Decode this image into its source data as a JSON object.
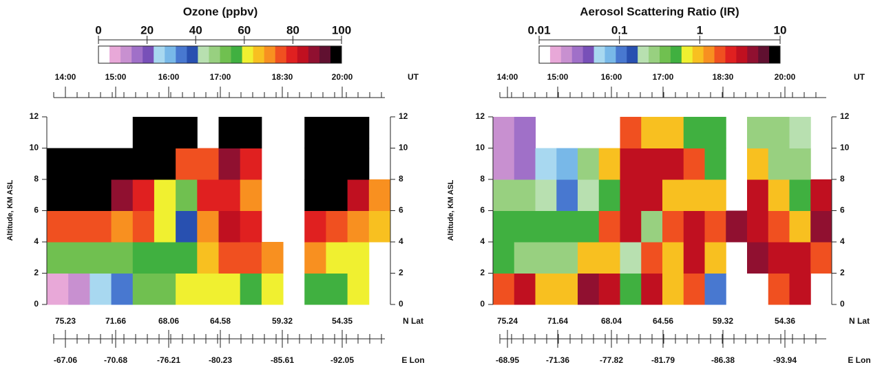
{
  "chart_data": [
    {
      "type": "heatmap",
      "title": "Ozone (ppbv)",
      "ylabel": "Altitude, KM ASL",
      "ylim": [
        0,
        12
      ],
      "yticks": [
        0,
        2,
        4,
        6,
        8,
        10,
        12
      ],
      "y": [
        0,
        2,
        4,
        6,
        8,
        10,
        12
      ],
      "z": [
        [
          5,
          10,
          25,
          35,
          50,
          50,
          60,
          60,
          60,
          55,
          60,
          null,
          55,
          55,
          60,
          null
        ],
        [
          50,
          50,
          50,
          50,
          55,
          55,
          55,
          65,
          75,
          75,
          70,
          null,
          70,
          60,
          60,
          null
        ],
        [
          75,
          75,
          75,
          70,
          75,
          60,
          40,
          70,
          85,
          80,
          null,
          null,
          80,
          75,
          70,
          65
        ],
        [
          100,
          100,
          100,
          90,
          80,
          60,
          50,
          80,
          80,
          70,
          null,
          null,
          100,
          100,
          85,
          70
        ],
        [
          100,
          100,
          100,
          100,
          100,
          100,
          75,
          75,
          90,
          80,
          null,
          null,
          100,
          100,
          100,
          null
        ],
        [
          null,
          null,
          null,
          null,
          100,
          100,
          100,
          null,
          100,
          100,
          null,
          null,
          100,
          100,
          100,
          null
        ]
      ],
      "colormap": [
        "#ffffff",
        "#e8a8d8",
        "#c890d0",
        "#a070c8",
        "#7850b8",
        "#a8d8f0",
        "#78b8e8",
        "#4878d0",
        "#2850b0",
        "#b8e0b0",
        "#98d080",
        "#70c050",
        "#40b040",
        "#f0f030",
        "#f8c020",
        "#f89020",
        "#f05020",
        "#e02020",
        "#c01020",
        "#901030",
        "#601030",
        "#000000"
      ],
      "clim": [
        0,
        100
      ],
      "cticks": [
        0,
        20,
        40,
        60,
        80,
        100
      ],
      "clog": false,
      "top_labels": [
        "14:00",
        "15:00",
        "16:00",
        "17:00",
        "18:30",
        "20:00"
      ],
      "top_unit": "UT",
      "lat_labels": [
        75.23,
        71.66,
        68.06,
        64.58,
        59.32,
        54.35
      ],
      "lat_unit": "N Lat",
      "lon_labels": [
        -67.06,
        -70.68,
        -76.21,
        -80.23,
        -85.61,
        -92.05
      ],
      "lon_unit": "E Lon"
    },
    {
      "type": "heatmap",
      "title": "Aerosol Scattering Ratio (IR)",
      "ylabel": "Altitude, KM ASL",
      "ylim": [
        0,
        12
      ],
      "yticks": [
        0,
        2,
        4,
        6,
        8,
        10,
        12
      ],
      "y": [
        0,
        2,
        4,
        6,
        8,
        10,
        12
      ],
      "z": [
        [
          2,
          3,
          1,
          1,
          5,
          3,
          0.5,
          3,
          1,
          2,
          0.1,
          null,
          null,
          2,
          3,
          null
        ],
        [
          0.5,
          0.3,
          0.3,
          0.3,
          1,
          1,
          0.2,
          2,
          1,
          3,
          1,
          null,
          5,
          3,
          3,
          2
        ],
        [
          0.5,
          0.5,
          0.5,
          0.5,
          0.5,
          2,
          3,
          0.3,
          2,
          3,
          2,
          5,
          3,
          2,
          1,
          5
        ],
        [
          0.3,
          0.3,
          0.2,
          0.1,
          0.2,
          0.5,
          3,
          3,
          1,
          1,
          1,
          null,
          3,
          1,
          0.5,
          3
        ],
        [
          0.02,
          0.03,
          0.05,
          0.08,
          0.3,
          1,
          3,
          3,
          3,
          2,
          0.5,
          null,
          1,
          0.3,
          0.3,
          null
        ],
        [
          0.02,
          0.03,
          null,
          null,
          null,
          null,
          2,
          1,
          1,
          0.5,
          0.5,
          null,
          0.3,
          0.3,
          0.2,
          null
        ]
      ],
      "colormap": [
        "#ffffff",
        "#e8a8d8",
        "#c890d0",
        "#a070c8",
        "#7850b8",
        "#a8d8f0",
        "#78b8e8",
        "#4878d0",
        "#2850b0",
        "#b8e0b0",
        "#98d080",
        "#70c050",
        "#40b040",
        "#f0f030",
        "#f8c020",
        "#f89020",
        "#f05020",
        "#e02020",
        "#c01020",
        "#901030",
        "#601030",
        "#000000"
      ],
      "clim": [
        0.01,
        10
      ],
      "cticks": [
        0.01,
        0.1,
        1,
        10
      ],
      "clog": true,
      "top_labels": [
        "14:00",
        "15:00",
        "16:00",
        "17:00",
        "18:30",
        "20:00"
      ],
      "top_unit": "UT",
      "lat_labels": [
        75.24,
        71.64,
        68.04,
        64.56,
        59.32,
        54.36
      ],
      "lat_unit": "N Lat",
      "lon_labels": [
        -68.95,
        -71.36,
        -77.82,
        -81.79,
        -86.38,
        -93.94
      ],
      "lon_unit": "E Lon"
    }
  ]
}
